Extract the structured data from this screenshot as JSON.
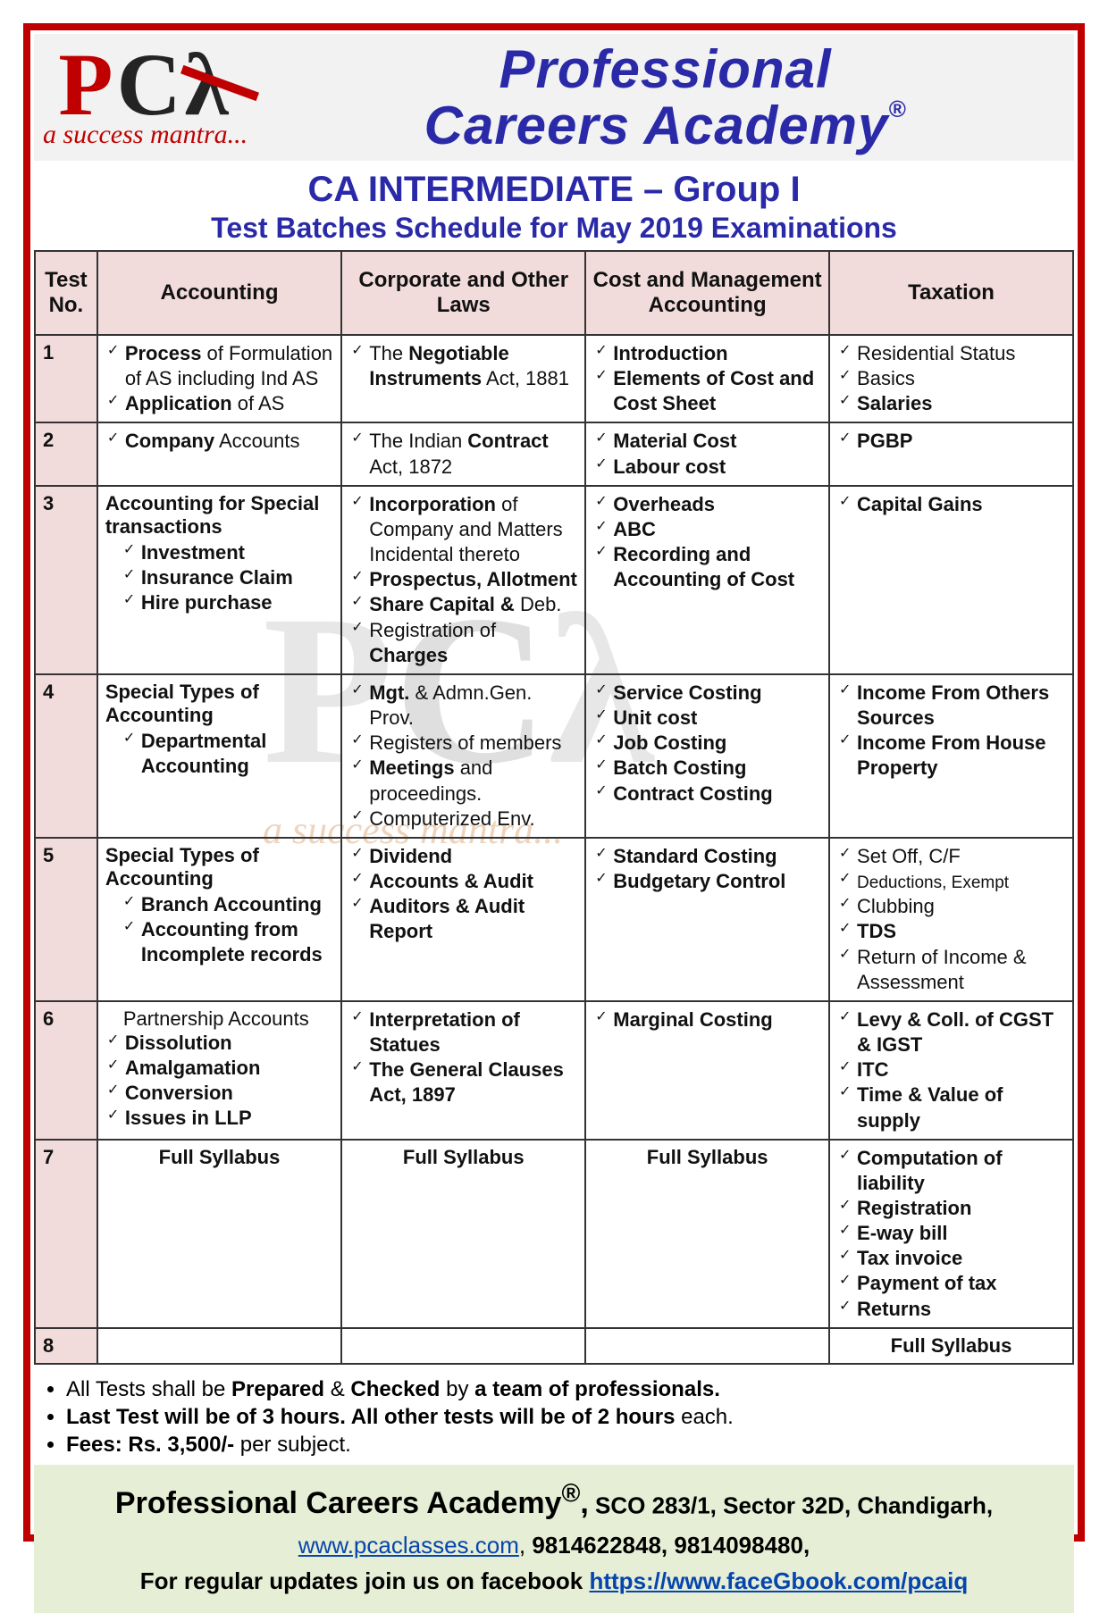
{
  "logo": {
    "letters": "PCλ",
    "tagline": "a success mantra..."
  },
  "brand": {
    "line1": "Professional",
    "line2": "Careers Academy",
    "reg": "®"
  },
  "heading": {
    "h1": "CA INTERMEDIATE – Group I",
    "h2": "Test Batches Schedule for May 2019 Examinations"
  },
  "columns": [
    "Test No.",
    "Accounting",
    "Corporate and Other Laws",
    "Cost and Management Accounting",
    "Taxation"
  ],
  "rows": [
    {
      "no": "1",
      "accounting": {
        "items": [
          {
            "html": "<span class='b'>Process</span> of Formulation of AS including Ind AS"
          },
          {
            "html": "<span class='b'>Application</span> of AS"
          }
        ]
      },
      "laws": {
        "items": [
          {
            "html": "The <span class='b'>Negotiable Instruments</span> Act, 1881"
          }
        ]
      },
      "cost": {
        "items": [
          {
            "html": "<span class='b'>Introduction</span>"
          },
          {
            "html": "<span class='b'>Elements of Cost and Cost Sheet</span>"
          }
        ]
      },
      "tax": {
        "items": [
          {
            "html": "Residential Status"
          },
          {
            "html": "Basics"
          },
          {
            "html": "<span class='b'>Salaries</span>"
          }
        ]
      }
    },
    {
      "no": "2",
      "accounting": {
        "items": [
          {
            "html": "<span class='b'>Company</span> Accounts"
          }
        ]
      },
      "laws": {
        "items": [
          {
            "html": "The Indian <span class='b'>Contract</span> Act, 1872"
          }
        ]
      },
      "cost": {
        "items": [
          {
            "html": "<span class='b'>Material Cost</span>"
          },
          {
            "html": "<span class='b'>Labour cost</span>"
          }
        ]
      },
      "tax": {
        "items": [
          {
            "html": "<span class='b'>PGBP</span>"
          }
        ]
      }
    },
    {
      "no": "3",
      "accounting": {
        "head": "Accounting for Special transactions",
        "items": [
          {
            "html": "<span class='b'>Investment</span>",
            "sub": true
          },
          {
            "html": "<span class='b'>Insurance Claim</span>",
            "sub": true
          },
          {
            "html": "<span class='b'>Hire purchase</span>",
            "sub": true
          }
        ]
      },
      "laws": {
        "items": [
          {
            "html": "<span class='b'>Incorporation</span> of Company and Matters Incidental thereto"
          },
          {
            "html": "<span class='b'>Prospectus, Allotment</span>"
          },
          {
            "html": "<span class='b'>Share Capital &</span> Deb."
          },
          {
            "html": "Registration of <span class='b'>Charges</span>"
          }
        ]
      },
      "cost": {
        "items": [
          {
            "html": "<span class='b'>Overheads</span>"
          },
          {
            "html": "<span class='b'>ABC</span>"
          },
          {
            "html": "<span class='b'>Recording and Accounting of Cost</span>"
          }
        ]
      },
      "tax": {
        "items": [
          {
            "html": "<span class='b'>Capital Gains</span>"
          }
        ]
      }
    },
    {
      "no": "4",
      "accounting": {
        "head": "Special Types of Accounting",
        "items": [
          {
            "html": "<span class='b'>Departmental Accounting</span>",
            "sub": true
          }
        ]
      },
      "laws": {
        "items": [
          {
            "html": "<span class='b'>Mgt.</span> & Admn.Gen. Prov."
          },
          {
            "html": "Registers of members"
          },
          {
            "html": "<span class='b'>Meetings</span> and proceedings."
          },
          {
            "html": "Computerized Env."
          }
        ]
      },
      "cost": {
        "items": [
          {
            "html": "<span class='b'>Service Costing</span>"
          },
          {
            "html": "<span class='b'>Unit cost</span>"
          },
          {
            "html": "<span class='b'>Job Costing</span>"
          },
          {
            "html": "<span class='b'>Batch Costing</span>"
          },
          {
            "html": "<span class='b'>Contract Costing</span>"
          }
        ]
      },
      "tax": {
        "items": [
          {
            "html": "<span class='b'>Income From Others Sources</span>"
          },
          {
            "html": "<span class='b'>Income From House Property</span>"
          }
        ]
      }
    },
    {
      "no": "5",
      "accounting": {
        "head": "Special Types of Accounting",
        "items": [
          {
            "html": "<span class='b'>Branch Accounting</span>",
            "sub": true
          },
          {
            "html": "<span class='b'>Accounting from Incomplete records</span>",
            "sub": true
          }
        ]
      },
      "laws": {
        "items": [
          {
            "html": "<span class='b'>Dividend</span>"
          },
          {
            "html": "<span class='b'>Accounts & Audit</span>"
          },
          {
            "html": "<span class='b'>Auditors & Audit Report</span>"
          }
        ]
      },
      "cost": {
        "items": [
          {
            "html": "<span class='b'>Standard Costing</span>"
          },
          {
            "html": "<span class='b'>Budgetary Control</span>"
          }
        ]
      },
      "tax": {
        "items": [
          {
            "html": "Set Off, C/F"
          },
          {
            "html": "<span class='small'>Deductions, Exempt</span>"
          },
          {
            "html": "Clubbing"
          },
          {
            "html": "<span class='b'>TDS</span>"
          },
          {
            "html": "Return of Income & Assessment"
          }
        ]
      }
    },
    {
      "no": "6",
      "accounting": {
        "headplain": "Partnership Accounts",
        "items": [
          {
            "html": "<span class='b'>Dissolution</span>",
            "sub": false
          },
          {
            "html": "<span class='b'>Amalgamation</span>"
          },
          {
            "html": "<span class='b'>Conversion</span>"
          },
          {
            "html": "<span class='b'>Issues in LLP</span>"
          }
        ]
      },
      "laws": {
        "items": [
          {
            "html": "<span class='b'>Interpretation of Statues</span>"
          },
          {
            "html": "<span class='b'>The General Clauses Act, 1897</span>"
          }
        ]
      },
      "cost": {
        "items": [
          {
            "html": "<span class='b'>Marginal Costing</span>"
          }
        ]
      },
      "tax": {
        "items": [
          {
            "html": "<span class='b'>Levy & Coll. of CGST & IGST</span>"
          },
          {
            "html": "<span class='b'>ITC</span>"
          },
          {
            "html": "<span class='b'>Time & Value of supply</span>"
          }
        ]
      }
    },
    {
      "no": "7",
      "accounting": {
        "full": "Full Syllabus"
      },
      "laws": {
        "full": "Full Syllabus"
      },
      "cost": {
        "full": "Full Syllabus"
      },
      "tax": {
        "items": [
          {
            "html": "<span class='b'>Computation of liability</span>"
          },
          {
            "html": "<span class='b'>Registration</span>"
          },
          {
            "html": "<span class='b'>E-way bill</span>"
          },
          {
            "html": "<span class='b'>Tax invoice</span>"
          },
          {
            "html": "<span class='b'>Payment of tax</span>"
          },
          {
            "html": "<span class='b'>Returns</span>"
          }
        ]
      }
    },
    {
      "no": "8",
      "accounting": {
        "empty": true
      },
      "laws": {
        "empty": true
      },
      "cost": {
        "empty": true
      },
      "tax": {
        "fullRight": "Full Syllabus"
      }
    }
  ],
  "notes": [
    "All Tests shall be <span class='b'>Prepared</span> & <span class='b'>Checked</span> by <span class='b'>a team of professionals.</span>",
    "<span class='b'>Last Test will be of 3 hours. All other tests will be of 2 hours</span> each.",
    "<span class='b'>Fees: Rs. 3,500/-</span> per subject."
  ],
  "footer": {
    "org": "Professional Careers Academy",
    "reg": "®",
    "address": "SCO 283/1, Sector 32D, Chandigarh,",
    "website": "www.pcaclasses.com",
    "phones": "9814622848, 9814098480,",
    "fbText": "For regular updates join us on facebook",
    "fbUrl": "https://www.faceGbook.com/pcaiq"
  },
  "style": {
    "border_color": "#c00000",
    "header_bg": "#f2f2f2",
    "th_bg": "#f2dcdb",
    "footer_bg": "#e6eed5",
    "brand_color": "#2a2aa8",
    "link_color": "#0645ad"
  }
}
